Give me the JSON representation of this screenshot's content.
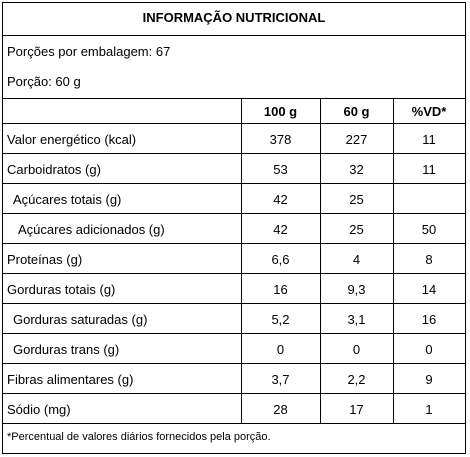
{
  "table": {
    "title": "INFORMAÇÃO NUTRICIONAL",
    "servings_per_package": "Porções por embalagem: 67",
    "serving_size": "Porção: 60 g",
    "columns": [
      "100 g",
      "60 g",
      "%VD*"
    ],
    "rows": [
      {
        "label": "Valor energético (kcal)",
        "v100": "378",
        "v60": "227",
        "vd": "11"
      },
      {
        "label": "Carboidratos (g)",
        "v100": "53",
        "v60": "32",
        "vd": "11"
      },
      {
        "label": "Açúcares totais (g)",
        "v100": "42",
        "v60": "25",
        "vd": ""
      },
      {
        "label": "Açúcares adicionados (g)",
        "v100": "42",
        "v60": "25",
        "vd": "50"
      },
      {
        "label": "Proteínas (g)",
        "v100": "6,6",
        "v60": "4",
        "vd": "8"
      },
      {
        "label": "Gorduras totais (g)",
        "v100": "16",
        "v60": "9,3",
        "vd": "14"
      },
      {
        "label": "Gorduras saturadas (g)",
        "v100": "5,2",
        "v60": "3,1",
        "vd": "16"
      },
      {
        "label": "Gorduras trans (g)",
        "v100": "0",
        "v60": "0",
        "vd": "0"
      },
      {
        "label": "Fibras alimentares (g)",
        "v100": "3,7",
        "v60": "2,2",
        "vd": "9"
      },
      {
        "label": "Sódio (mg)",
        "v100": "28",
        "v60": "17",
        "vd": "1"
      }
    ],
    "footnote": "*Percentual de valores diários fornecidos pela porção."
  }
}
